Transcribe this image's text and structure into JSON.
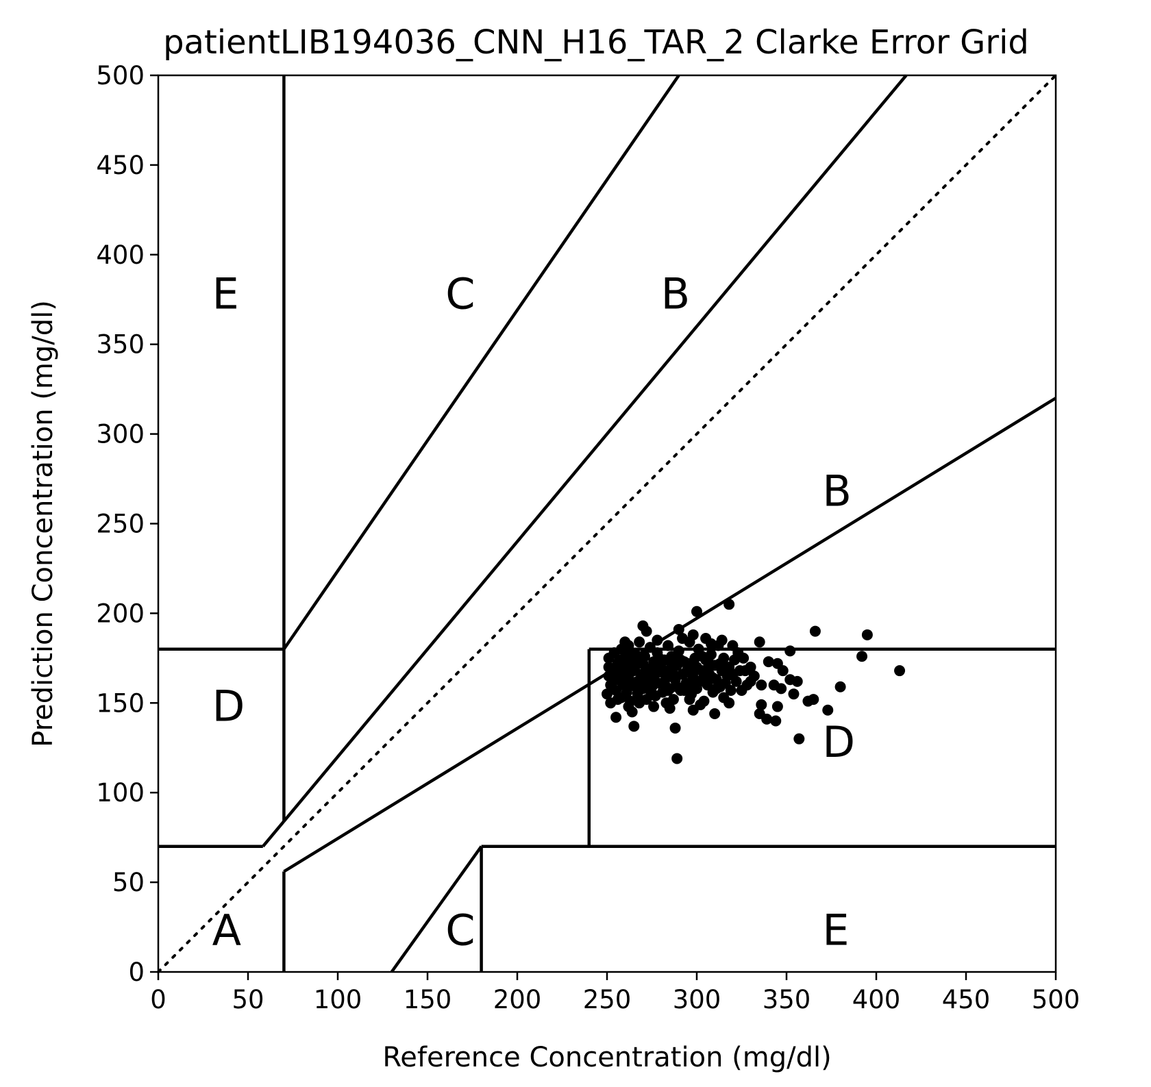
{
  "chart_data": {
    "type": "scatter",
    "title": "patientLIB194036_CNN_H16_TAR_2 Clarke Error Grid",
    "xlabel": "Reference Concentration (mg/dl)",
    "ylabel": "Prediction Concentration (mg/dl)",
    "xlim": [
      0,
      500
    ],
    "ylim": [
      0,
      500
    ],
    "xticks": [
      0,
      50,
      100,
      150,
      200,
      250,
      300,
      350,
      400,
      450,
      500
    ],
    "yticks": [
      0,
      50,
      100,
      150,
      200,
      250,
      300,
      350,
      400,
      450,
      500
    ],
    "grid": false,
    "zone_lines": [
      {
        "x": [
          0,
          500
        ],
        "y": [
          0,
          500
        ],
        "style": "dotted"
      },
      {
        "x": [
          0,
          58.33
        ],
        "y": [
          70,
          70
        ],
        "style": "solid"
      },
      {
        "x": [
          58.33,
          70
        ],
        "y": [
          70,
          84
        ],
        "style": "solid"
      },
      {
        "x": [
          70,
          70
        ],
        "y": [
          84,
          500
        ],
        "style": "solid"
      },
      {
        "x": [
          70,
          70
        ],
        "y": [
          0,
          56
        ],
        "style": "solid"
      },
      {
        "x": [
          70,
          500
        ],
        "y": [
          56,
          320
        ],
        "style": "solid"
      },
      {
        "x": [
          70,
          290
        ],
        "y": [
          180,
          500
        ],
        "style": "solid"
      },
      {
        "x": [
          70,
          416.67
        ],
        "y": [
          84,
          500
        ],
        "style": "solid"
      },
      {
        "x": [
          0,
          70
        ],
        "y": [
          180,
          180
        ],
        "style": "solid"
      },
      {
        "x": [
          240,
          500
        ],
        "y": [
          180,
          180
        ],
        "style": "solid"
      },
      {
        "x": [
          240,
          240
        ],
        "y": [
          70,
          180
        ],
        "style": "solid"
      },
      {
        "x": [
          180,
          500
        ],
        "y": [
          70,
          70
        ],
        "style": "solid"
      },
      {
        "x": [
          130,
          180
        ],
        "y": [
          0,
          70
        ],
        "style": "solid"
      },
      {
        "x": [
          180,
          180
        ],
        "y": [
          0,
          70
        ],
        "style": "solid"
      }
    ],
    "zone_labels": [
      {
        "text": "A",
        "x": 30,
        "y": 15
      },
      {
        "text": "B",
        "x": 370,
        "y": 260
      },
      {
        "text": "B",
        "x": 280,
        "y": 370
      },
      {
        "text": "C",
        "x": 160,
        "y": 370
      },
      {
        "text": "C",
        "x": 160,
        "y": 15
      },
      {
        "text": "D",
        "x": 30,
        "y": 140
      },
      {
        "text": "D",
        "x": 370,
        "y": 120
      },
      {
        "text": "E",
        "x": 30,
        "y": 370
      },
      {
        "text": "E",
        "x": 370,
        "y": 15
      }
    ],
    "series": [
      {
        "points": [
          [
            300,
            201
          ],
          [
            318,
            205
          ],
          [
            270,
            193
          ],
          [
            272,
            190
          ],
          [
            290,
            191
          ],
          [
            366,
            190
          ],
          [
            395,
            188
          ],
          [
            298,
            188
          ],
          [
            305,
            186
          ],
          [
            314,
            185
          ],
          [
            320,
            182
          ],
          [
            335,
            184
          ],
          [
            392,
            176
          ],
          [
            352,
            179
          ],
          [
            340,
            173
          ],
          [
            345,
            172
          ],
          [
            348,
            168
          ],
          [
            413,
            168
          ],
          [
            380,
            159
          ],
          [
            343,
            160
          ],
          [
            347,
            158
          ],
          [
            352,
            163
          ],
          [
            356,
            162
          ],
          [
            354,
            155
          ],
          [
            336,
            160
          ],
          [
            330,
            162
          ],
          [
            325,
            157
          ],
          [
            336,
            149
          ],
          [
            335,
            144
          ],
          [
            339,
            141
          ],
          [
            345,
            148
          ],
          [
            344,
            140
          ],
          [
            362,
            151
          ],
          [
            365,
            152
          ],
          [
            373,
            146
          ],
          [
            357,
            130
          ],
          [
            288,
            136
          ],
          [
            265,
            137
          ],
          [
            289,
            119
          ],
          [
            255,
            142
          ],
          [
            264,
            145
          ],
          [
            283,
            150
          ],
          [
            296,
            152
          ],
          [
            298,
            146
          ],
          [
            310,
            144
          ],
          [
            315,
            153
          ],
          [
            250,
            155
          ],
          [
            252,
            160
          ],
          [
            251,
            165
          ],
          [
            251,
            170
          ],
          [
            251,
            175
          ],
          [
            252,
            150
          ],
          [
            254,
            178
          ],
          [
            255,
            157
          ],
          [
            256,
            163
          ],
          [
            256,
            172
          ],
          [
            257,
            167
          ],
          [
            258,
            153
          ],
          [
            258,
            180
          ],
          [
            259,
            160
          ],
          [
            260,
            170
          ],
          [
            260,
            175
          ],
          [
            261,
            156
          ],
          [
            262,
            165
          ],
          [
            262,
            182
          ],
          [
            263,
            151
          ],
          [
            264,
            160
          ],
          [
            264,
            172
          ],
          [
            265,
            168
          ],
          [
            266,
            177
          ],
          [
            267,
            155
          ],
          [
            267,
            162
          ],
          [
            268,
            150
          ],
          [
            268,
            184
          ],
          [
            269,
            166
          ],
          [
            270,
            158
          ],
          [
            270,
            172
          ],
          [
            271,
            176
          ],
          [
            272,
            163
          ],
          [
            272,
            152
          ],
          [
            273,
            169
          ],
          [
            274,
            181
          ],
          [
            275,
            159
          ],
          [
            275,
            165
          ],
          [
            276,
            173
          ],
          [
            277,
            154
          ],
          [
            278,
            167
          ],
          [
            278,
            178
          ],
          [
            279,
            161
          ],
          [
            280,
            170
          ],
          [
            281,
            156
          ],
          [
            282,
            174
          ],
          [
            283,
            164
          ],
          [
            284,
            182
          ],
          [
            285,
            158
          ],
          [
            285,
            168
          ],
          [
            286,
            176
          ],
          [
            287,
            152
          ],
          [
            288,
            163
          ],
          [
            289,
            171
          ],
          [
            290,
            179
          ],
          [
            291,
            157
          ],
          [
            292,
            166
          ],
          [
            293,
            173
          ],
          [
            294,
            161
          ],
          [
            295,
            169
          ],
          [
            296,
            184
          ],
          [
            297,
            155
          ],
          [
            298,
            164
          ],
          [
            299,
            175
          ],
          [
            300,
            158
          ],
          [
            300,
            170
          ],
          [
            301,
            180
          ],
          [
            302,
            162
          ],
          [
            303,
            168
          ],
          [
            304,
            151
          ],
          [
            305,
            174
          ],
          [
            306,
            160
          ],
          [
            307,
            166
          ],
          [
            308,
            177
          ],
          [
            309,
            156
          ],
          [
            310,
            171
          ],
          [
            311,
            163
          ],
          [
            312,
            182
          ],
          [
            313,
            159
          ],
          [
            314,
            168
          ],
          [
            315,
            175
          ],
          [
            316,
            161
          ],
          [
            318,
            170
          ],
          [
            319,
            157
          ],
          [
            320,
            166
          ],
          [
            321,
            174
          ],
          [
            322,
            162
          ],
          [
            324,
            168
          ],
          [
            326,
            175
          ],
          [
            328,
            160
          ],
          [
            330,
            170
          ],
          [
            332,
            165
          ],
          [
            253,
            158
          ],
          [
            257,
            174
          ],
          [
            261,
            161
          ],
          [
            263,
            177
          ],
          [
            266,
            159
          ],
          [
            269,
            174
          ],
          [
            271,
            167
          ],
          [
            274,
            157
          ],
          [
            276,
            163
          ],
          [
            279,
            175
          ],
          [
            281,
            167
          ],
          [
            284,
            157
          ],
          [
            286,
            171
          ],
          [
            289,
            159
          ],
          [
            291,
            174
          ],
          [
            294,
            167
          ],
          [
            297,
            160
          ],
          [
            299,
            168
          ],
          [
            303,
            176
          ],
          [
            306,
            169
          ],
          [
            309,
            164
          ],
          [
            313,
            172
          ],
          [
            317,
            165
          ],
          [
            323,
            178
          ],
          [
            327,
            168
          ],
          [
            260,
            184
          ],
          [
            278,
            185
          ],
          [
            292,
            186
          ],
          [
            308,
            183
          ],
          [
            262,
            148
          ],
          [
            276,
            148
          ],
          [
            285,
            147
          ],
          [
            302,
            149
          ],
          [
            318,
            150
          ],
          [
            256,
            152
          ],
          [
            266,
            171
          ],
          [
            273,
            165
          ],
          [
            282,
            161
          ],
          [
            287,
            166
          ],
          [
            293,
            157
          ],
          [
            304,
            165
          ],
          [
            311,
            158
          ],
          [
            254,
            168
          ],
          [
            259,
            164
          ],
          [
            268,
            161
          ],
          [
            277,
            170
          ],
          [
            295,
            172
          ],
          [
            301,
            162
          ],
          [
            307,
            172
          ],
          [
            316,
            168
          ]
        ]
      }
    ]
  }
}
